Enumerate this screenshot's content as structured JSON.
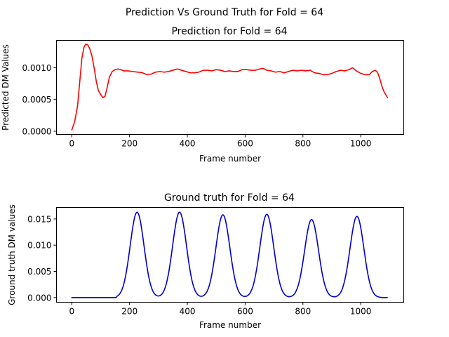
{
  "figure": {
    "suptitle": "Prediction Vs Ground Truth for Fold = 64"
  },
  "chart_data": [
    {
      "type": "line",
      "title": "Prediction for Fold = 64",
      "xlabel": "Frame number",
      "ylabel": "Predicted DM Values",
      "xlim": [
        -53,
        1149
      ],
      "ylim": [
        -5e-05,
        0.00143
      ],
      "xticks": [
        0,
        200,
        400,
        600,
        800,
        1000
      ],
      "xtick_labels": [
        "0",
        "200",
        "400",
        "600",
        "800",
        "1000"
      ],
      "yticks": [
        0.0,
        0.0005,
        0.001
      ],
      "ytick_labels": [
        "0.0000",
        "0.0005",
        "0.0010"
      ],
      "grid": false,
      "series": [
        {
          "color": "#ff0000",
          "points": [
            [
              0,
              2e-05
            ],
            [
              10,
              0.00015
            ],
            [
              20,
              0.0004
            ],
            [
              28,
              0.0008
            ],
            [
              35,
              0.00115
            ],
            [
              42,
              0.00132
            ],
            [
              48,
              0.00137
            ],
            [
              55,
              0.00136
            ],
            [
              62,
              0.0013
            ],
            [
              70,
              0.00118
            ],
            [
              78,
              0.00098
            ],
            [
              85,
              0.00078
            ],
            [
              92,
              0.00064
            ],
            [
              100,
              0.00058
            ],
            [
              107,
              0.00053
            ],
            [
              115,
              0.00055
            ],
            [
              122,
              0.00068
            ],
            [
              130,
              0.00085
            ],
            [
              140,
              0.00094
            ],
            [
              150,
              0.00097
            ],
            [
              160,
              0.00098
            ],
            [
              170,
              0.00097
            ],
            [
              180,
              0.00095
            ],
            [
              195,
              0.00095
            ],
            [
              210,
              0.00094
            ],
            [
              230,
              0.00093
            ],
            [
              245,
              0.00092
            ],
            [
              260,
              0.00089
            ],
            [
              275,
              0.0009
            ],
            [
              290,
              0.00093
            ],
            [
              305,
              0.00094
            ],
            [
              320,
              0.00093
            ],
            [
              335,
              0.00094
            ],
            [
              350,
              0.00096
            ],
            [
              365,
              0.00098
            ],
            [
              380,
              0.00096
            ],
            [
              395,
              0.00094
            ],
            [
              410,
              0.00092
            ],
            [
              425,
              0.00092
            ],
            [
              440,
              0.00093
            ],
            [
              455,
              0.00096
            ],
            [
              470,
              0.00096
            ],
            [
              485,
              0.00095
            ],
            [
              500,
              0.00097
            ],
            [
              515,
              0.00096
            ],
            [
              530,
              0.00094
            ],
            [
              545,
              0.00095
            ],
            [
              560,
              0.00094
            ],
            [
              575,
              0.00094
            ],
            [
              590,
              0.00097
            ],
            [
              605,
              0.00097
            ],
            [
              620,
              0.00096
            ],
            [
              635,
              0.00096
            ],
            [
              650,
              0.00098
            ],
            [
              662,
              0.00099
            ],
            [
              675,
              0.00096
            ],
            [
              690,
              0.00095
            ],
            [
              705,
              0.00093
            ],
            [
              720,
              0.00094
            ],
            [
              735,
              0.00092
            ],
            [
              750,
              0.00094
            ],
            [
              765,
              0.00096
            ],
            [
              780,
              0.00095
            ],
            [
              795,
              0.00096
            ],
            [
              810,
              0.00095
            ],
            [
              825,
              0.00096
            ],
            [
              840,
              0.00092
            ],
            [
              855,
              0.00091
            ],
            [
              870,
              0.00089
            ],
            [
              885,
              0.00089
            ],
            [
              900,
              0.00091
            ],
            [
              915,
              0.00094
            ],
            [
              930,
              0.00096
            ],
            [
              945,
              0.00095
            ],
            [
              960,
              0.00097
            ],
            [
              972,
              0.001
            ],
            [
              985,
              0.00095
            ],
            [
              1000,
              0.00091
            ],
            [
              1015,
              0.00089
            ],
            [
              1030,
              0.00089
            ],
            [
              1040,
              0.00094
            ],
            [
              1050,
              0.00096
            ],
            [
              1058,
              0.00093
            ],
            [
              1066,
              0.00083
            ],
            [
              1074,
              0.0007
            ],
            [
              1082,
              0.00061
            ],
            [
              1093,
              0.00053
            ]
          ]
        }
      ]
    },
    {
      "type": "line",
      "title": "Ground truth for Fold = 64",
      "xlabel": "Frame number",
      "ylabel": "Ground truth DM values",
      "xlim": [
        -53,
        1149
      ],
      "ylim": [
        -0.0009,
        0.0172
      ],
      "xticks": [
        0,
        200,
        400,
        600,
        800,
        1000
      ],
      "xtick_labels": [
        "0",
        "200",
        "400",
        "600",
        "800",
        "1000"
      ],
      "yticks": [
        0.0,
        0.005,
        0.01,
        0.015
      ],
      "ytick_labels": [
        "0.000",
        "0.005",
        "0.010",
        "0.015"
      ],
      "grid": false,
      "series": [
        {
          "color": "#0000cc",
          "baseline": 0.0,
          "start": 155,
          "end": 1070,
          "x_max": 1093,
          "sigma": 24,
          "peaks": [
            {
              "x": 226,
              "amplitude": 0.0163
            },
            {
              "x": 373,
              "amplitude": 0.0163
            },
            {
              "x": 523,
              "amplitude": 0.0158
            },
            {
              "x": 675,
              "amplitude": 0.0159
            },
            {
              "x": 830,
              "amplitude": 0.0149
            },
            {
              "x": 987,
              "amplitude": 0.0155
            }
          ]
        }
      ]
    }
  ]
}
